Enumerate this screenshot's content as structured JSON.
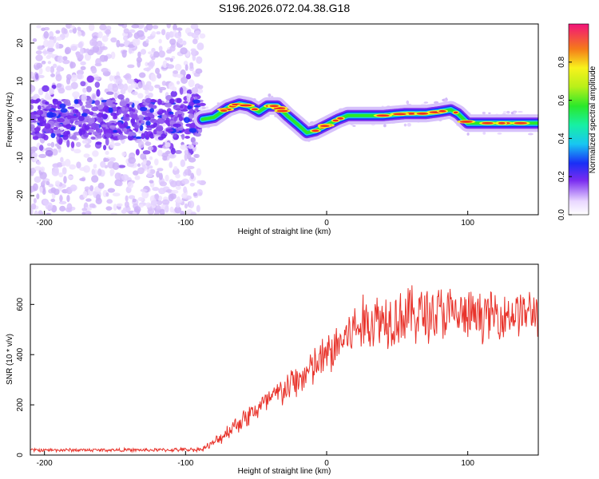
{
  "title": "S196.2026.072.04.38.G18",
  "chart_data": [
    {
      "type": "heatmap",
      "xlabel": "Height of straight line (km)",
      "ylabel": "Frequency (Hz)",
      "xlim": [
        -210,
        150
      ],
      "ylim": [
        -25,
        25
      ],
      "xticks": [
        -200,
        -100,
        0,
        100
      ],
      "yticks": [
        -20,
        -10,
        0,
        10,
        20
      ],
      "description_series": {
        "name": "dominant frequency track",
        "x": [
          -88,
          -80,
          -70,
          -62,
          -55,
          -48,
          -42,
          -35,
          -28,
          -20,
          -14,
          -8,
          0,
          8,
          15,
          25,
          40,
          55,
          70,
          80,
          88,
          93,
          100,
          110,
          125,
          140,
          150
        ],
        "y": [
          0,
          0.5,
          3,
          4,
          3.5,
          2,
          3.5,
          3.5,
          1,
          -1.5,
          -3.5,
          -3,
          -1.5,
          0,
          1,
          1,
          1,
          1.5,
          1.5,
          2,
          2.5,
          1.5,
          -1,
          -1,
          -1,
          -1,
          -1
        ]
      },
      "noise_region_x": [
        -210,
        -88
      ],
      "colorbar": {
        "label": "Normalized spectral amplitude",
        "range": [
          0,
          1
        ],
        "ticks": [
          0.0,
          0.2,
          0.4,
          0.6,
          0.8
        ]
      }
    },
    {
      "type": "line",
      "xlabel": "Height of straight line (km)",
      "ylabel": "SNR (10 * v/v)",
      "xlim": [
        -210,
        150
      ],
      "ylim": [
        0,
        760
      ],
      "xticks": [
        -200,
        -100,
        0,
        100
      ],
      "yticks": [
        0,
        200,
        400,
        600
      ],
      "color": "#e8332b",
      "series": [
        {
          "name": "SNR",
          "x": [
            -210,
            -180,
            -150,
            -120,
            -90,
            -82,
            -75,
            -65,
            -55,
            -45,
            -35,
            -25,
            -15,
            -5,
            5,
            15,
            25,
            35,
            45,
            60,
            80,
            100,
            120,
            150
          ],
          "mean": [
            20,
            20,
            20,
            20,
            22,
            40,
            70,
            120,
            160,
            200,
            240,
            280,
            320,
            370,
            420,
            480,
            520,
            540,
            550,
            560,
            565,
            550,
            560,
            570
          ],
          "amplitude": [
            8,
            8,
            8,
            8,
            10,
            20,
            30,
            45,
            55,
            60,
            70,
            80,
            90,
            100,
            110,
            120,
            130,
            140,
            140,
            140,
            140,
            120,
            110,
            110
          ]
        }
      ]
    }
  ]
}
